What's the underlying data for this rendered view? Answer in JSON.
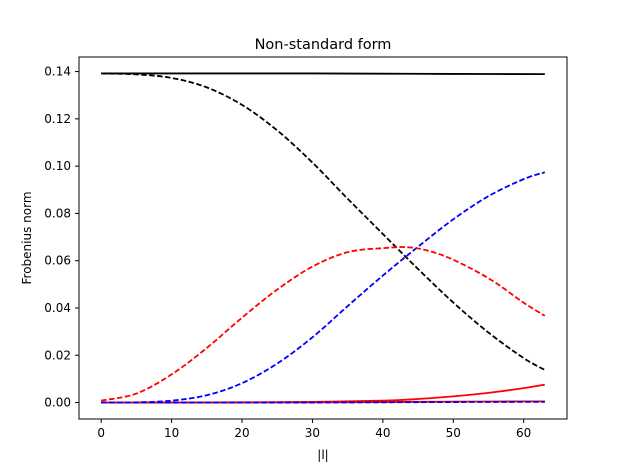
{
  "chart_data": {
    "type": "line",
    "title": "Non-standard form",
    "xlabel": "|l|",
    "ylabel": "Frobenius norm",
    "xlim": [
      -3.15,
      66.15
    ],
    "ylim": [
      -0.00696,
      0.14616
    ],
    "xticks": [
      0,
      10,
      20,
      30,
      40,
      50,
      60
    ],
    "xtick_labels": [
      "0",
      "10",
      "20",
      "30",
      "40",
      "50",
      "60"
    ],
    "yticks": [
      0.0,
      0.02,
      0.04,
      0.06,
      0.08,
      0.1,
      0.12,
      0.14
    ],
    "ytick_labels": [
      "0.00",
      "0.02",
      "0.04",
      "0.06",
      "0.08",
      "0.10",
      "0.12",
      "0.14"
    ],
    "grid": false,
    "series": [
      {
        "style": "solid",
        "color": "#000000",
        "x": [
          0,
          10,
          20,
          30,
          40,
          50,
          63
        ],
        "y": [
          0.1392,
          0.1392,
          0.1392,
          0.1392,
          0.1391,
          0.139,
          0.1389
        ]
      },
      {
        "style": "dashed",
        "color": "#000000",
        "x": [
          0,
          5,
          10,
          15,
          20,
          25,
          30,
          35,
          40,
          45,
          50,
          55,
          60,
          63
        ],
        "y": [
          0.1392,
          0.1388,
          0.1373,
          0.1333,
          0.1259,
          0.1151,
          0.1015,
          0.0862,
          0.0713,
          0.0565,
          0.0423,
          0.0296,
          0.0188,
          0.0138
        ]
      },
      {
        "style": "dashed",
        "color": "#0000ff",
        "x": [
          0,
          5,
          10,
          15,
          20,
          25,
          30,
          35,
          40,
          45,
          50,
          55,
          60,
          63
        ],
        "y": [
          0.0,
          0.0001,
          0.0008,
          0.0031,
          0.0082,
          0.0165,
          0.0276,
          0.0408,
          0.0537,
          0.0659,
          0.0775,
          0.0873,
          0.0945,
          0.0974
        ]
      },
      {
        "style": "dashed",
        "color": "#ff0000",
        "x": [
          0,
          5,
          10,
          15,
          20,
          25,
          30,
          35,
          40,
          44,
          48,
          52,
          56,
          60,
          63
        ],
        "y": [
          0.0008,
          0.0038,
          0.0119,
          0.0231,
          0.0359,
          0.0478,
          0.0575,
          0.0636,
          0.0653,
          0.0656,
          0.0628,
          0.0575,
          0.0507,
          0.0422,
          0.0367
        ]
      },
      {
        "style": "solid",
        "color": "#ff0000",
        "x": [
          0,
          10,
          20,
          30,
          40,
          45,
          50,
          55,
          60,
          63
        ],
        "y": [
          0.0,
          0.0,
          0.0001,
          0.0003,
          0.0008,
          0.0015,
          0.0026,
          0.0041,
          0.0061,
          0.0076
        ]
      },
      {
        "style": "solid",
        "color": "#ff0000",
        "x": [
          0,
          10,
          20,
          30,
          40,
          50,
          63
        ],
        "y": [
          0.0,
          0.0,
          0.0,
          0.0001,
          0.0002,
          0.0004,
          0.0005
        ]
      },
      {
        "style": "dashed",
        "color": "#0000ff",
        "x": [
          0,
          10,
          20,
          30,
          40,
          50,
          63
        ],
        "y": [
          0.0,
          0.0,
          0.0,
          0.0,
          0.0001,
          0.0002,
          0.0003
        ]
      }
    ]
  }
}
